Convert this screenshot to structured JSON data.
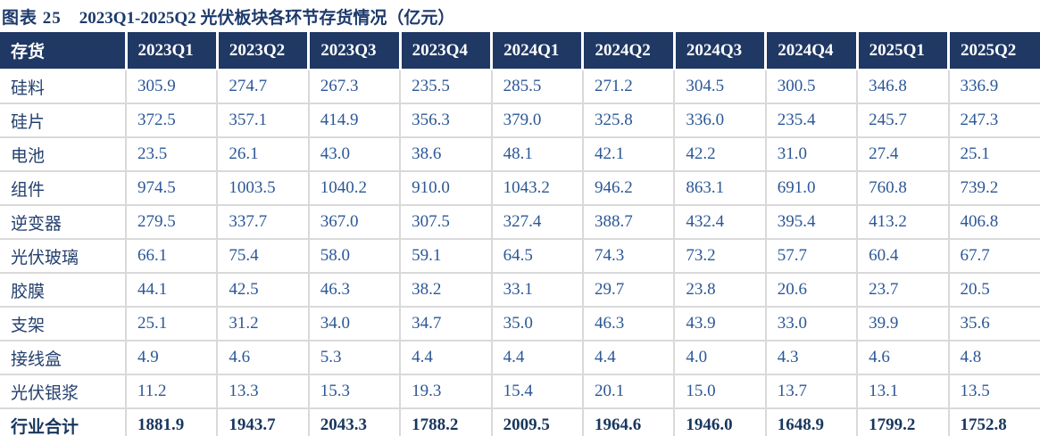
{
  "figure": {
    "label": "图表 25",
    "title": "2023Q1-2025Q2 光伏板块各环节存货情况（亿元）"
  },
  "colors": {
    "header_bg": "#1f3864",
    "header_text": "#ffffff",
    "title_text": "#1d3a6b",
    "value_text": "#2b5796",
    "label_text": "#24406e",
    "grid_line": "#d9d9d9",
    "total_border": "#1f3864"
  },
  "chart_data": {
    "type": "table",
    "title": "2023Q1-2025Q2 光伏板块各环节存货情况（亿元）",
    "unit": "亿元",
    "columns": [
      "存货",
      "2023Q1",
      "2023Q2",
      "2023Q3",
      "2023Q4",
      "2024Q1",
      "2024Q2",
      "2024Q3",
      "2024Q4",
      "2025Q1",
      "2025Q2"
    ],
    "rows": [
      {
        "label": "硅料",
        "bold": false,
        "values": [
          "305.9",
          "274.7",
          "267.3",
          "235.5",
          "285.5",
          "271.2",
          "304.5",
          "300.5",
          "346.8",
          "336.9"
        ]
      },
      {
        "label": "硅片",
        "bold": false,
        "values": [
          "372.5",
          "357.1",
          "414.9",
          "356.3",
          "379.0",
          "325.8",
          "336.0",
          "235.4",
          "245.7",
          "247.3"
        ]
      },
      {
        "label": "电池",
        "bold": false,
        "values": [
          "23.5",
          "26.1",
          "43.0",
          "38.6",
          "48.1",
          "42.1",
          "42.2",
          "31.0",
          "27.4",
          "25.1"
        ]
      },
      {
        "label": "组件",
        "bold": false,
        "values": [
          "974.5",
          "1003.5",
          "1040.2",
          "910.0",
          "1043.2",
          "946.2",
          "863.1",
          "691.0",
          "760.8",
          "739.2"
        ]
      },
      {
        "label": "逆变器",
        "bold": false,
        "values": [
          "279.5",
          "337.7",
          "367.0",
          "307.5",
          "327.4",
          "388.7",
          "432.4",
          "395.4",
          "413.2",
          "406.8"
        ]
      },
      {
        "label": "光伏玻璃",
        "bold": false,
        "values": [
          "66.1",
          "75.4",
          "58.0",
          "59.1",
          "64.5",
          "74.3",
          "73.2",
          "57.7",
          "60.4",
          "67.7"
        ]
      },
      {
        "label": "胶膜",
        "bold": false,
        "values": [
          "44.1",
          "42.5",
          "46.3",
          "38.2",
          "33.1",
          "29.7",
          "23.8",
          "20.6",
          "23.7",
          "20.5"
        ]
      },
      {
        "label": "支架",
        "bold": false,
        "values": [
          "25.1",
          "31.2",
          "34.0",
          "34.7",
          "35.0",
          "46.3",
          "43.9",
          "33.0",
          "39.9",
          "35.6"
        ]
      },
      {
        "label": "接线盒",
        "bold": false,
        "values": [
          "4.9",
          "4.6",
          "5.3",
          "4.4",
          "4.4",
          "4.4",
          "4.0",
          "4.3",
          "4.6",
          "4.8"
        ]
      },
      {
        "label": "光伏银浆",
        "bold": false,
        "values": [
          "11.2",
          "13.3",
          "15.3",
          "19.3",
          "15.4",
          "20.1",
          "15.0",
          "13.7",
          "13.1",
          "13.5"
        ]
      },
      {
        "label": "行业合计",
        "bold": true,
        "values": [
          "1881.9",
          "1943.7",
          "2043.3",
          "1788.2",
          "2009.5",
          "1964.6",
          "1946.0",
          "1648.9",
          "1799.2",
          "1752.8"
        ]
      }
    ]
  }
}
